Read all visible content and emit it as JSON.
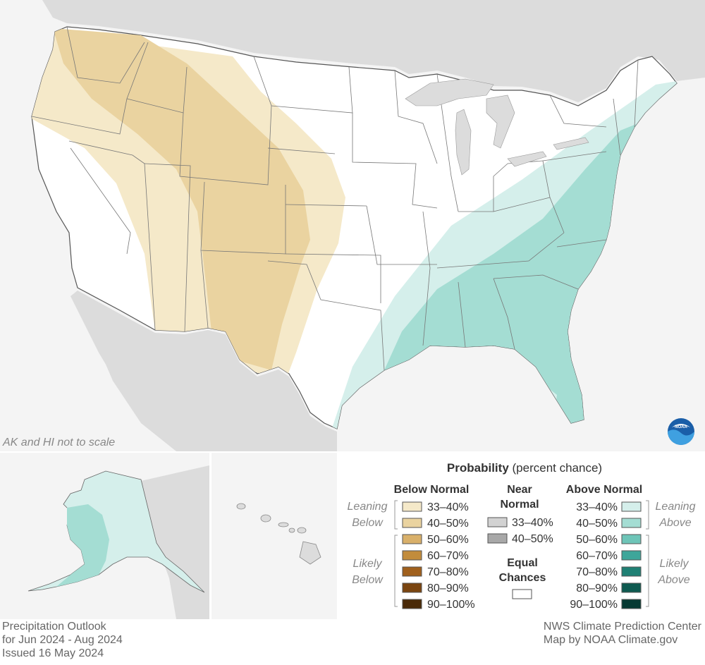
{
  "map": {
    "note": "AK and HI not to scale",
    "logo_label": "NOAA"
  },
  "legend": {
    "title_bold": "Probability",
    "title_rest": " (percent chance)",
    "below_header": "Below Normal",
    "near_header_line1": "Near",
    "near_header_line2": "Normal",
    "above_header": "Above Normal",
    "leaning_below": [
      "Leaning",
      "Below"
    ],
    "likely_below": [
      "Likely",
      "Below"
    ],
    "leaning_above": [
      "Leaning",
      "Above"
    ],
    "likely_above": [
      "Likely",
      "Above"
    ],
    "equal_line1": "Equal",
    "equal_line2": "Chances",
    "below_items": [
      {
        "label": "33–40%",
        "color": "#f5e9c9"
      },
      {
        "label": "40–50%",
        "color": "#ead3a0"
      },
      {
        "label": "50–60%",
        "color": "#d9b06a"
      },
      {
        "label": "60–70%",
        "color": "#c28c3c"
      },
      {
        "label": "70–80%",
        "color": "#a0601d"
      },
      {
        "label": "80–90%",
        "color": "#7a4510"
      },
      {
        "label": "90–100%",
        "color": "#4a2a08"
      }
    ],
    "near_items": [
      {
        "label": "33–40%",
        "color": "#d2d2d2"
      },
      {
        "label": "40–50%",
        "color": "#a8a8a8"
      }
    ],
    "above_items": [
      {
        "label": "33–40%",
        "color": "#d5efeb"
      },
      {
        "label": "40–50%",
        "color": "#a4ddd3"
      },
      {
        "label": "50–60%",
        "color": "#6ec5b8"
      },
      {
        "label": "60–70%",
        "color": "#3ea69a"
      },
      {
        "label": "70–80%",
        "color": "#1f8074"
      },
      {
        "label": "80–90%",
        "color": "#0e5a50"
      },
      {
        "label": "90–100%",
        "color": "#063a33"
      }
    ]
  },
  "footer": {
    "left": [
      "Precipitation Outlook",
      "for Jun 2024 - Aug 2024",
      "Issued 16 May 2024"
    ],
    "right": [
      "NWS Climate Prediction Center",
      "Map by NOAA Climate.gov"
    ]
  }
}
